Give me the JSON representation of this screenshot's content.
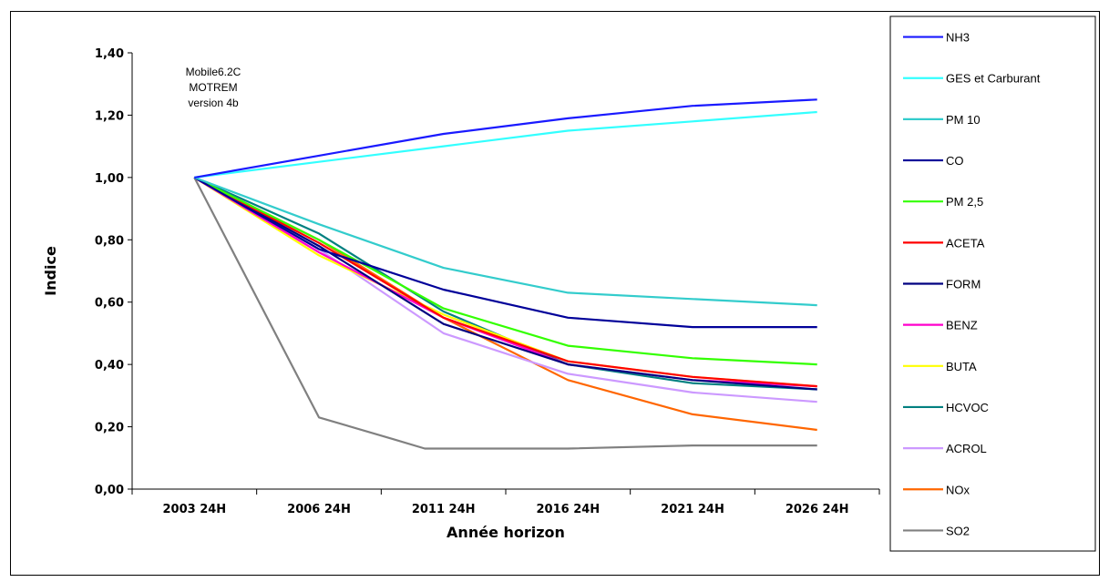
{
  "chart_data": {
    "type": "line",
    "title": "",
    "xlabel": "Année horizon",
    "ylabel": "Indice",
    "categories": [
      "2003 24H",
      "2006 24H",
      "2011 24H",
      "2016 24H",
      "2021 24H",
      "2026 24H"
    ],
    "ylim": [
      0,
      1.4
    ],
    "yticks": [
      "0,00",
      "0,20",
      "0,40",
      "0,60",
      "0,80",
      "1,00",
      "1,20",
      "1,40"
    ],
    "grid": false,
    "legend_position": "right",
    "annotation": [
      "Mobile6.2C",
      "MOTREM",
      "version 4b"
    ],
    "series": [
      {
        "name": "NH3",
        "color": "#1a1aff",
        "x": [
          0,
          1,
          2,
          3,
          4,
          5
        ],
        "values": [
          1.0,
          1.07,
          1.14,
          1.19,
          1.23,
          1.25
        ]
      },
      {
        "name": "GES et Carburant",
        "color": "#33ffff",
        "x": [
          0,
          1,
          2,
          3,
          4,
          5
        ],
        "values": [
          1.0,
          1.05,
          1.1,
          1.15,
          1.18,
          1.21
        ]
      },
      {
        "name": "PM 10",
        "color": "#33cccc",
        "x": [
          0,
          1,
          2,
          3,
          4,
          5
        ],
        "values": [
          1.0,
          0.85,
          0.71,
          0.63,
          0.61,
          0.59
        ]
      },
      {
        "name": "CO",
        "color": "#000099",
        "x": [
          0,
          1,
          2,
          3,
          4,
          5
        ],
        "values": [
          1.0,
          0.77,
          0.64,
          0.55,
          0.52,
          0.52
        ]
      },
      {
        "name": "PM 2,5",
        "color": "#33ff00",
        "x": [
          0,
          1,
          2,
          3,
          4,
          5
        ],
        "values": [
          1.0,
          0.8,
          0.58,
          0.46,
          0.42,
          0.4
        ]
      },
      {
        "name": "ACETA",
        "color": "#ff0000",
        "x": [
          0,
          1,
          2,
          3,
          4,
          5
        ],
        "values": [
          1.0,
          0.79,
          0.55,
          0.41,
          0.36,
          0.33
        ]
      },
      {
        "name": "FORM",
        "color": "#000080",
        "x": [
          0,
          1,
          2,
          3,
          4,
          5
        ],
        "values": [
          1.0,
          0.78,
          0.53,
          0.4,
          0.35,
          0.32
        ]
      },
      {
        "name": "BENZ",
        "color": "#ff00cc",
        "x": [
          0,
          1,
          2,
          3,
          4,
          5
        ],
        "values": [
          1.0,
          0.76,
          0.55,
          0.4,
          0.35,
          0.33
        ]
      },
      {
        "name": "BUTA",
        "color": "#ffff00",
        "x": [
          0,
          1,
          2,
          3,
          4,
          5
        ],
        "values": [
          1.0,
          0.75,
          0.56,
          0.41,
          0.36,
          0.33
        ]
      },
      {
        "name": "HCVOC",
        "color": "#008080",
        "x": [
          0,
          1,
          2,
          3,
          4,
          5
        ],
        "values": [
          1.0,
          0.82,
          0.57,
          0.4,
          0.34,
          0.32
        ]
      },
      {
        "name": "ACROL",
        "color": "#cc99ff",
        "x": [
          0,
          1,
          2,
          3,
          4,
          5
        ],
        "values": [
          1.0,
          0.77,
          0.5,
          0.37,
          0.31,
          0.28
        ]
      },
      {
        "name": "NOx",
        "color": "#ff6600",
        "x": [
          0,
          1,
          2,
          3,
          4,
          5
        ],
        "values": [
          1.0,
          0.8,
          0.55,
          0.35,
          0.24,
          0.19
        ]
      },
      {
        "name": "SO2",
        "color": "#808080",
        "x": [
          0,
          1,
          1.6,
          1.85,
          2,
          3,
          4,
          5
        ],
        "values": [
          1.0,
          0.23,
          0.16,
          0.13,
          0.13,
          0.13,
          0.14,
          0.14
        ]
      }
    ]
  }
}
